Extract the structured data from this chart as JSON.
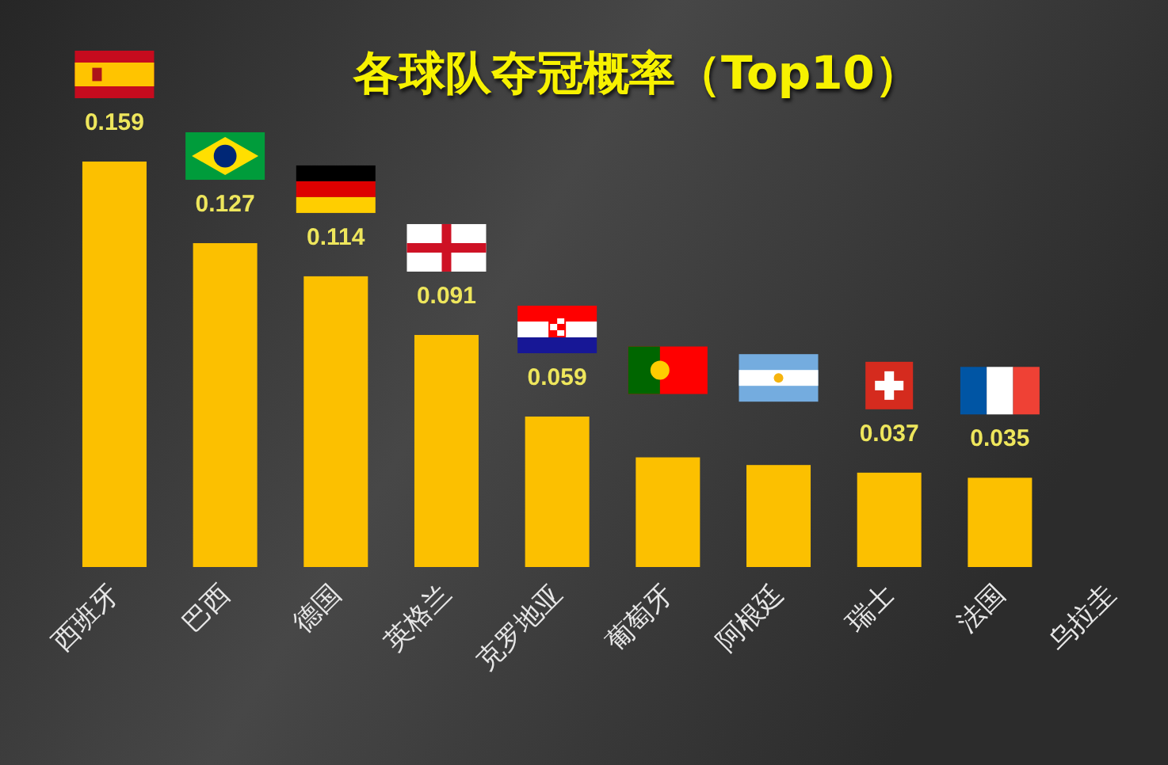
{
  "chart_data": {
    "type": "bar",
    "title": "各球队夺冠概率（Top10）",
    "categories": [
      "西班牙",
      "巴西",
      "德国",
      "英格兰",
      "克罗地亚",
      "葡萄牙",
      "阿根廷",
      "瑞士",
      "法国",
      "乌拉圭"
    ],
    "values": [
      0.159,
      0.127,
      0.114,
      0.091,
      0.059,
      0.043,
      0.04,
      0.037,
      0.035,
      null
    ],
    "value_labels": [
      "0.159",
      "0.127",
      "0.114",
      "0.091",
      "0.059",
      null,
      null,
      "0.037",
      "0.035",
      null
    ],
    "color": "#fcc000"
  }
}
